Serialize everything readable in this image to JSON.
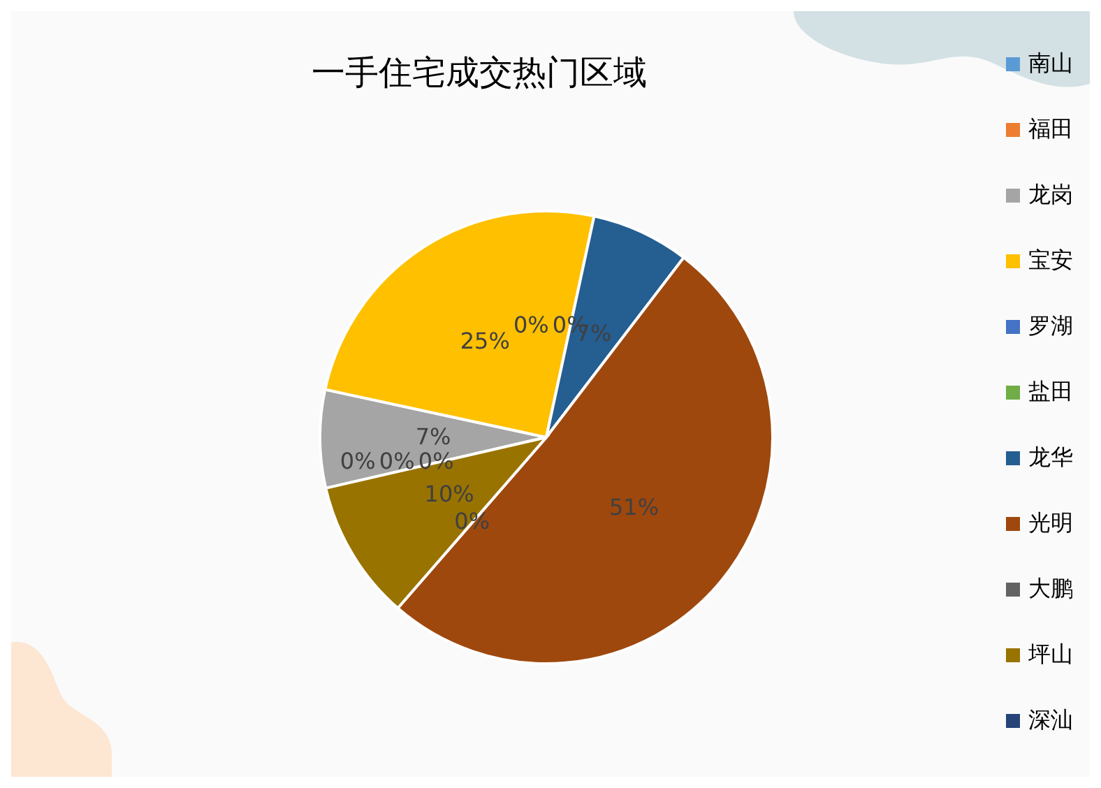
{
  "chart_data": {
    "type": "pie",
    "title": "一手住宅成交热门区域",
    "categories": [
      "南山",
      "福田",
      "龙岗",
      "宝安",
      "罗湖",
      "盐田",
      "龙华",
      "光明",
      "大鹏",
      "坪山",
      "深汕"
    ],
    "values": [
      0,
      0,
      7,
      25,
      0,
      0,
      7,
      51,
      0,
      10,
      0
    ],
    "colors": [
      "#5b9bd5",
      "#ed7d31",
      "#a5a5a5",
      "#ffc000",
      "#4472c4",
      "#70ad47",
      "#255e91",
      "#9e480e",
      "#636363",
      "#997300",
      "#264478"
    ],
    "value_labels": [
      "0%",
      "0%",
      "7%",
      "25%",
      "0%",
      "0%",
      "7%",
      "51%",
      "0%",
      "10%",
      "0%"
    ],
    "legend": "right"
  }
}
